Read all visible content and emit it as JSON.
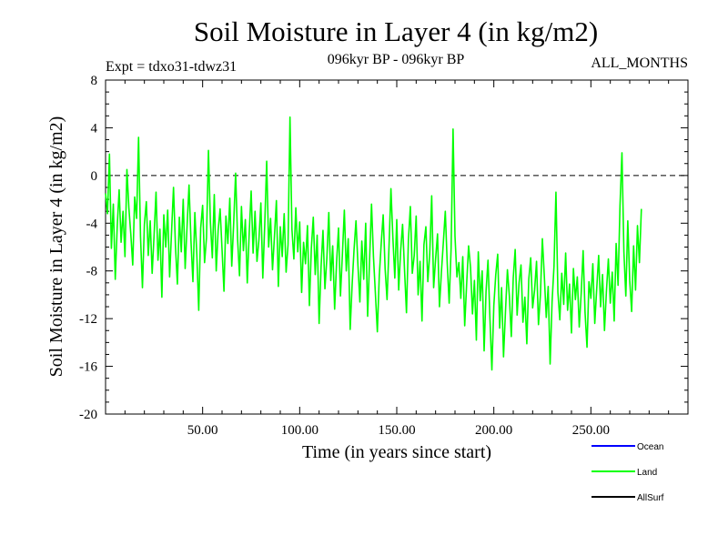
{
  "chart_data": {
    "type": "line",
    "title": "Soil Moisture in Layer 4 (in kg/m2)",
    "subtitle": "096kyr BP - 096kyr BP",
    "expt_label": "Expt = tdxo31-tdwz31",
    "months_label": "ALL_MONTHS",
    "xlabel": "Time (in years since start)",
    "ylabel": "Soil Moisture in Layer 4 (in kg/m2)",
    "xlim": [
      0,
      300
    ],
    "ylim": [
      -20,
      8
    ],
    "x_ticks": [
      50,
      100,
      150,
      200,
      250
    ],
    "x_tick_labels": [
      "50.00",
      "100.00",
      "150.00",
      "200.00",
      "250.00"
    ],
    "y_ticks": [
      -20,
      -16,
      -12,
      -8,
      -4,
      0,
      4,
      8
    ],
    "y_tick_labels": [
      "-20",
      "-16",
      "-12",
      "-8",
      "-4",
      "0",
      "4",
      "8"
    ],
    "reference_line": 0,
    "legend": [
      {
        "name": "Ocean",
        "color": "#0000ff"
      },
      {
        "name": "Land",
        "color": "#00ff00"
      },
      {
        "name": "AllSurf",
        "color": "#000000"
      }
    ],
    "series": [
      {
        "name": "Land",
        "color": "#00ff00",
        "x_start": 0,
        "x_step": 1,
        "values": [
          -1.5,
          -3.2,
          1.8,
          -6.1,
          -2.4,
          -8.7,
          -4.3,
          -1.2,
          -5.6,
          -3.0,
          -6.8,
          0.5,
          -2.7,
          -4.9,
          -7.5,
          -1.8,
          -3.6,
          3.2,
          -5.1,
          -9.4,
          -4.1,
          -2.2,
          -6.7,
          -3.8,
          -8.2,
          -5.0,
          -1.4,
          -7.1,
          -4.5,
          -10.2,
          -3.3,
          -6.0,
          -2.9,
          -8.5,
          -4.7,
          -1.0,
          -5.9,
          -9.1,
          -3.5,
          -6.4,
          -2.0,
          -7.8,
          -4.2,
          -0.8,
          -5.5,
          -8.9,
          -3.1,
          -6.6,
          -11.3,
          -4.4,
          -2.5,
          -7.3,
          -5.2,
          2.1,
          -3.9,
          -6.9,
          -1.6,
          -8.0,
          -4.6,
          -2.8,
          -6.2,
          -9.7,
          -3.4,
          -5.7,
          -1.9,
          -7.6,
          -4.0,
          0.2,
          -5.3,
          -8.4,
          -2.6,
          -6.3,
          -3.7,
          -9.0,
          -4.8,
          -1.3,
          -6.5,
          -3.0,
          -7.2,
          -5.4,
          -2.3,
          -8.6,
          -4.1,
          1.2,
          -6.0,
          -3.6,
          -7.9,
          -5.1,
          -2.1,
          -9.3,
          -4.3,
          -6.8,
          -3.2,
          -8.1,
          -5.8,
          4.9,
          -4.5,
          -7.0,
          -2.7,
          -6.4,
          -3.9,
          -9.8,
          -5.6,
          -7.4,
          -4.2,
          -10.9,
          -6.1,
          -3.5,
          -8.3,
          -5.0,
          -12.4,
          -7.7,
          -4.6,
          -9.5,
          -6.9,
          -3.1,
          -8.8,
          -5.9,
          -11.2,
          -7.3,
          -4.4,
          -10.1,
          -6.6,
          -2.9,
          -8.0,
          -5.3,
          -12.9,
          -9.2,
          -6.2,
          -3.8,
          -7.5,
          -10.6,
          -5.5,
          -8.7,
          -4.0,
          -11.8,
          -7.1,
          -2.4,
          -6.8,
          -9.9,
          -13.1,
          -8.4,
          -5.7,
          -3.3,
          -7.8,
          -10.4,
          -6.0,
          -1.1,
          -5.2,
          -8.6,
          -3.7,
          -9.6,
          -6.3,
          -4.1,
          -7.9,
          -11.5,
          -5.4,
          -2.6,
          -8.2,
          -6.7,
          -3.4,
          -10.0,
          -7.2,
          -12.2,
          -5.8,
          -4.3,
          -8.9,
          -6.5,
          -1.7,
          -9.4,
          -7.0,
          -4.9,
          -11.0,
          -8.1,
          -5.6,
          -3.0,
          -7.4,
          -10.7,
          -6.1,
          3.9,
          -5.1,
          -8.5,
          -7.3,
          -10.3,
          -6.8,
          -12.6,
          -9.1,
          -5.9,
          -7.7,
          -11.6,
          -8.8,
          -13.8,
          -6.4,
          -10.5,
          -8.0,
          -14.7,
          -9.7,
          -7.1,
          -12.0,
          -16.3,
          -10.9,
          -8.3,
          -6.6,
          -12.8,
          -9.4,
          -15.2,
          -11.4,
          -7.9,
          -10.1,
          -13.5,
          -8.6,
          -6.2,
          -11.7,
          -9.0,
          -7.5,
          -12.3,
          -10.2,
          -14.1,
          -8.7,
          -6.9,
          -11.1,
          -9.6,
          -7.2,
          -12.5,
          -10.0,
          -5.3,
          -8.4,
          -11.9,
          -9.3,
          -15.8,
          -10.6,
          -7.6,
          -1.4,
          -9.8,
          -12.1,
          -8.2,
          -10.8,
          -6.5,
          -11.3,
          -9.1,
          -13.2,
          -7.8,
          -10.4,
          -8.5,
          -12.7,
          -9.9,
          -6.3,
          -11.5,
          -14.4,
          -8.9,
          -10.3,
          -7.4,
          -12.4,
          -9.5,
          -6.7,
          -11.0,
          -8.3,
          -13.0,
          -9.7,
          -7.0,
          -10.7,
          -8.1,
          -12.2,
          -5.7,
          -9.2,
          -2.5,
          1.9,
          -6.4,
          -10.1,
          -3.8,
          -8.8,
          -11.4,
          -5.9,
          -9.6,
          -4.2,
          -7.3,
          -2.8
        ]
      }
    ]
  }
}
